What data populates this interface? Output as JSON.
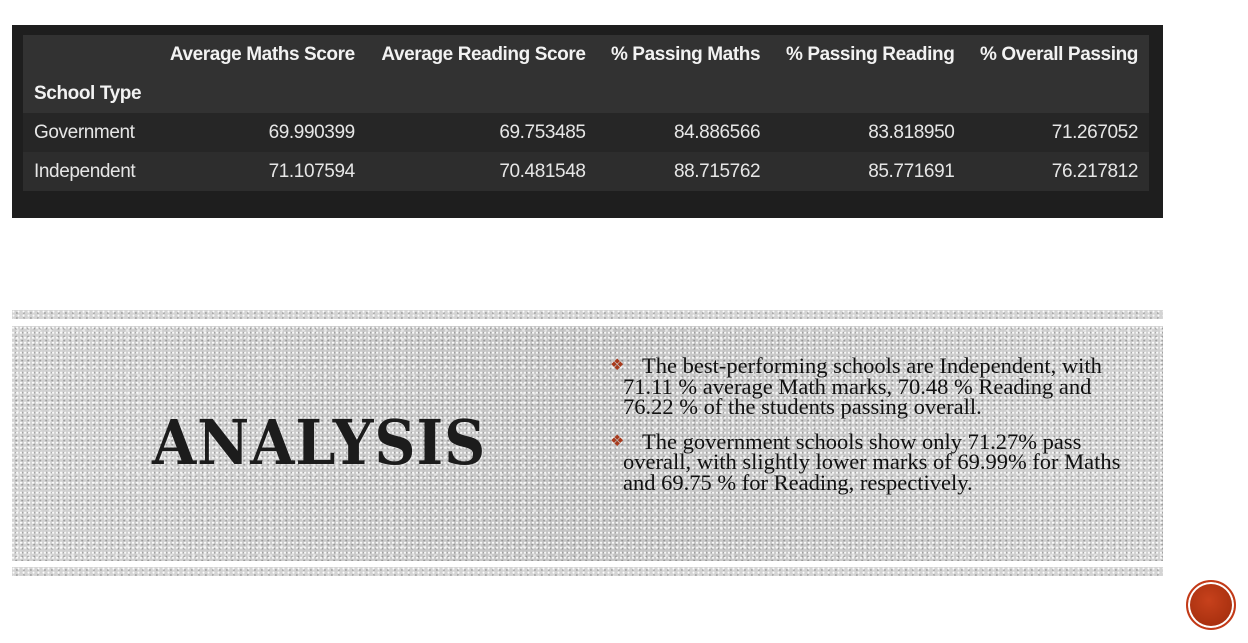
{
  "table": {
    "columns": [
      "Average Maths Score",
      "Average Reading Score",
      "% Passing Maths",
      "% Passing Reading",
      "% Overall Passing"
    ],
    "index_name": "School Type",
    "rows": [
      {
        "label": "Government",
        "values": [
          "69.990399",
          "69.753485",
          "84.886566",
          "83.818950",
          "71.267052"
        ]
      },
      {
        "label": "Independent",
        "values": [
          "71.107594",
          "70.481548",
          "88.715762",
          "85.771691",
          "76.217812"
        ]
      }
    ]
  },
  "analysis": {
    "title": "ANALYSIS",
    "bullet_icon": "diamond-bullet-icon",
    "bullets": [
      "The best-performing schools are Independent, with 71.11 % average Math marks, 70.48 % Reading and 76.22 % of the students passing overall.",
      "The government schools show only 71.27% pass overall, with slightly lower marks of 69.99% for Maths and 69.75 % for Reading, respectively."
    ]
  },
  "colors": {
    "accent": "#a83a1c",
    "table_bg": "#1e1e1e",
    "banner_bg": "#cfcfcf"
  },
  "nav": {
    "icon": "next-slide-circle-icon"
  }
}
